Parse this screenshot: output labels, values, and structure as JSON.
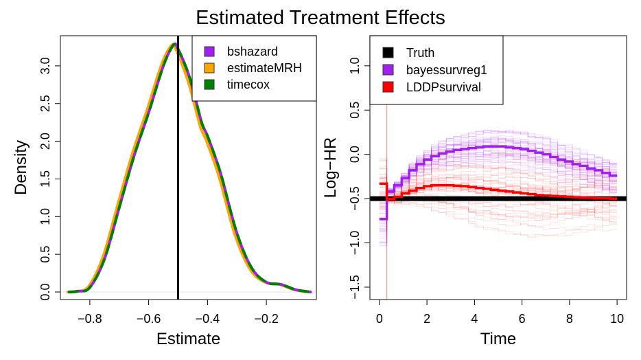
{
  "title": "Estimated Treatment Effects",
  "colors": {
    "bshazard": "#a020f0",
    "estimateMRH": "#ffa500",
    "timecox": "#008000",
    "truth": "#000000",
    "bayessurvreg1": "#a020f0",
    "LDDPsurvival": "#ff0000"
  },
  "chart_data": [
    {
      "type": "line",
      "xlabel": "Estimate",
      "ylabel": "Density",
      "xlim": [
        -0.9,
        -0.03
      ],
      "ylim": [
        -0.1,
        3.4
      ],
      "xticks": [
        -0.8,
        -0.6,
        -0.4,
        -0.2
      ],
      "xtick_labels": [
        "−0.8",
        "−0.6",
        "−0.4",
        "−0.2"
      ],
      "yticks": [
        0,
        0.5,
        1,
        1.5,
        2,
        2.5,
        3
      ],
      "ytick_labels": [
        "0.0",
        "0.5",
        "1.0",
        "1.5",
        "2.0",
        "2.5",
        "3.0"
      ],
      "vline": -0.5,
      "legend_position": "top-right",
      "x": [
        -0.87,
        -0.84,
        -0.8,
        -0.75,
        -0.7,
        -0.65,
        -0.6,
        -0.55,
        -0.515,
        -0.5,
        -0.47,
        -0.45,
        -0.42,
        -0.4,
        -0.37,
        -0.35,
        -0.3,
        -0.25,
        -0.2,
        -0.15,
        -0.1,
        -0.05
      ],
      "series": [
        {
          "name": "bshazard",
          "style": "solid",
          "values": [
            0,
            0.01,
            0.06,
            0.44,
            1.12,
            1.8,
            2.38,
            3.0,
            3.28,
            3.22,
            2.95,
            2.7,
            2.25,
            2.07,
            1.75,
            1.5,
            0.78,
            0.32,
            0.13,
            0.1,
            0.03,
            0
          ]
        },
        {
          "name": "estimateMRH",
          "style": "solid",
          "shift": -0.005,
          "values": [
            0,
            0.01,
            0.07,
            0.47,
            1.16,
            1.84,
            2.42,
            3.03,
            3.28,
            3.2,
            2.9,
            2.65,
            2.2,
            2.02,
            1.7,
            1.45,
            0.74,
            0.3,
            0.13,
            0.1,
            0.03,
            0
          ]
        },
        {
          "name": "timecox",
          "style": "dashed",
          "values": [
            0,
            0.01,
            0.06,
            0.44,
            1.12,
            1.8,
            2.38,
            3.0,
            3.28,
            3.22,
            2.95,
            2.7,
            2.25,
            2.07,
            1.75,
            1.5,
            0.78,
            0.32,
            0.13,
            0.1,
            0.03,
            0
          ]
        }
      ]
    },
    {
      "type": "line",
      "xlabel": "Time",
      "ylabel": "Log−HR",
      "xlim": [
        -0.4,
        10.4
      ],
      "ylim": [
        -1.64,
        1.34
      ],
      "xticks": [
        0,
        2,
        4,
        6,
        8,
        10
      ],
      "xtick_labels": [
        "0",
        "2",
        "4",
        "6",
        "8",
        "10"
      ],
      "yticks": [
        -1.5,
        -1,
        -0.5,
        0,
        0.5,
        1
      ],
      "ytick_labels": [
        "−1.5",
        "−1.0",
        "−0.5",
        "0.0",
        "0.5",
        "1.0"
      ],
      "legend_position": "top-left",
      "step_width": 0.3125,
      "series": [
        {
          "name": "Truth",
          "style": "thick-horizontal",
          "value": -0.5
        },
        {
          "name": "bayessurvreg1",
          "style": "step",
          "values": [
            -0.73,
            -0.42,
            -0.35,
            -0.27,
            -0.18,
            -0.11,
            -0.06,
            -0.02,
            0.01,
            0.03,
            0.05,
            0.06,
            0.07,
            0.08,
            0.09,
            0.09,
            0.09,
            0.08,
            0.07,
            0.06,
            0.04,
            0.02,
            0.0,
            -0.03,
            -0.06,
            -0.08,
            -0.11,
            -0.13,
            -0.16,
            -0.18,
            -0.21,
            -0.24
          ]
        },
        {
          "name": "LDDPsurvival",
          "style": "step",
          "values": [
            -0.33,
            -0.505,
            -0.48,
            -0.44,
            -0.41,
            -0.38,
            -0.36,
            -0.35,
            -0.35,
            -0.35,
            -0.355,
            -0.36,
            -0.37,
            -0.38,
            -0.39,
            -0.4,
            -0.41,
            -0.42,
            -0.43,
            -0.44,
            -0.45,
            -0.46,
            -0.465,
            -0.47,
            -0.475,
            -0.48,
            -0.485,
            -0.49,
            -0.49,
            -0.495,
            -0.495,
            -0.5
          ]
        }
      ]
    }
  ]
}
